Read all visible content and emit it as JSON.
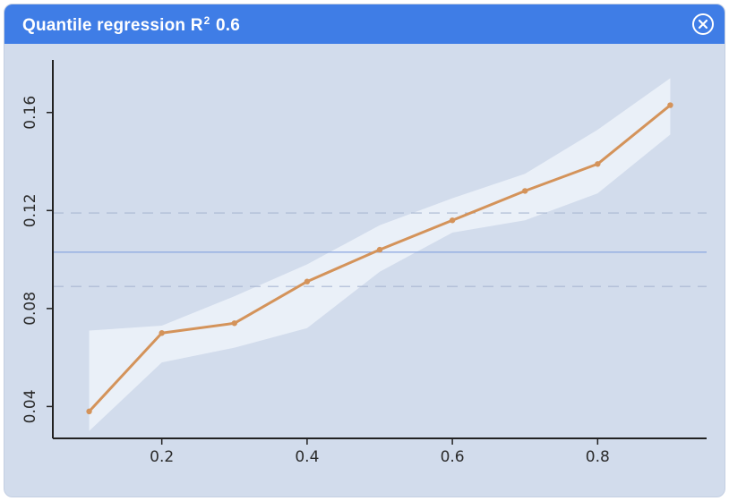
{
  "dialog": {
    "title_prefix": "Quantile regression R",
    "title_superscript": "2",
    "title_suffix": " 0.6",
    "close_icon": "close-circle-icon"
  },
  "colors": {
    "titlebar": "#3f7de6",
    "panel": "#d2dcec",
    "band": "#eef3fa",
    "line": "#d4935a",
    "reference_line": "#8aa6e0",
    "dashed_line": "#a9b8d2",
    "axis": "#222222"
  },
  "chart_data": {
    "type": "line",
    "title": "Quantile regression R² 0.6",
    "xlabel": "",
    "ylabel": "",
    "xlim": [
      0.05,
      0.95
    ],
    "ylim": [
      0.027,
      0.18
    ],
    "x_ticks": [
      "0.2",
      "0.4",
      "0.6",
      "0.8"
    ],
    "x_tick_values": [
      0.2,
      0.4,
      0.6,
      0.8
    ],
    "y_ticks": [
      "0.04",
      "0.08",
      "0.12",
      "0.16"
    ],
    "y_tick_values": [
      0.04,
      0.08,
      0.12,
      0.16
    ],
    "grid": false,
    "reference_line_y": 0.103,
    "dashed_lines_y": [
      0.119,
      0.089
    ],
    "series": [
      {
        "x": [
          0.1,
          0.2,
          0.3,
          0.4,
          0.5,
          0.6,
          0.7,
          0.8,
          0.9
        ],
        "y": [
          0.038,
          0.07,
          0.074,
          0.091,
          0.104,
          0.116,
          0.128,
          0.139,
          0.163
        ],
        "lower": [
          0.03,
          0.058,
          0.064,
          0.072,
          0.095,
          0.111,
          0.116,
          0.127,
          0.151
        ],
        "upper": [
          0.071,
          0.073,
          0.085,
          0.098,
          0.114,
          0.125,
          0.135,
          0.153,
          0.174
        ]
      }
    ]
  }
}
